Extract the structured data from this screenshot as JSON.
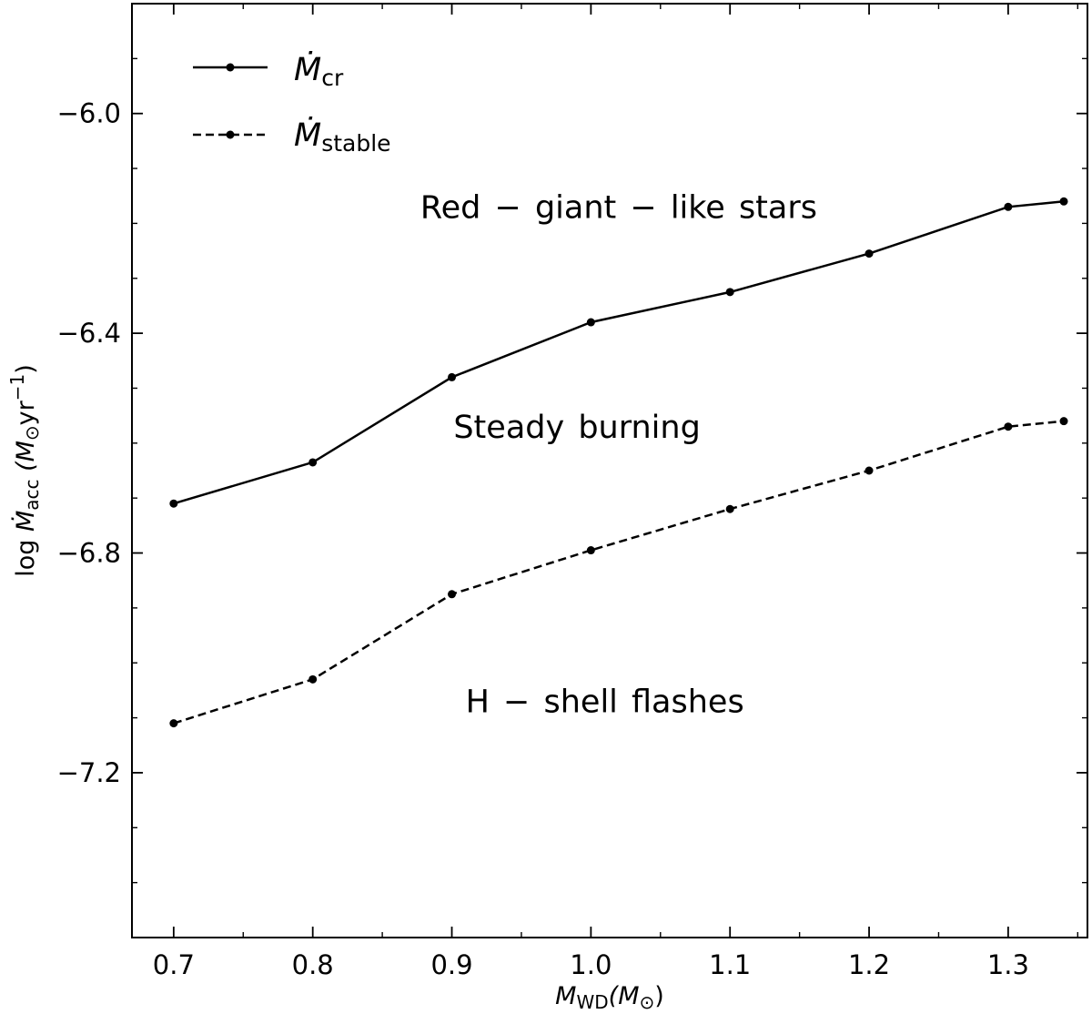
{
  "chart_data": {
    "type": "line",
    "xlabel_main": "M",
    "xlabel_sub": "WD",
    "xlabel_unit": "(M",
    "xlabel_unit_sub": "⊙",
    "xlabel_close": ")",
    "ylabel_prefix": "log ",
    "ylabel_main": "Ṁ",
    "ylabel_sub": "acc",
    "ylabel_unit": " (M",
    "ylabel_unit_sub": "⊙",
    "ylabel_unit_tail": "yr",
    "ylabel_unit_sup": "−1",
    "ylabel_close": ")",
    "xlim": [
      0.67,
      1.357
    ],
    "ylim": [
      -7.5,
      -5.8
    ],
    "x_ticks": [
      0.7,
      0.8,
      0.9,
      1.0,
      1.1,
      1.2,
      1.3
    ],
    "x_tick_labels": [
      "0.7",
      "0.8",
      "0.9",
      "1.0",
      "1.1",
      "1.2",
      "1.3"
    ],
    "y_ticks": [
      -6.0,
      -6.4,
      -6.8,
      -7.2
    ],
    "y_tick_labels": [
      "−6.0",
      "−6.4",
      "−6.8",
      "−7.2"
    ],
    "x": [
      0.7,
      0.8,
      0.9,
      1.0,
      1.1,
      1.2,
      1.3,
      1.34
    ],
    "series": [
      {
        "name_main": "Ṁ",
        "name_sub": "cr",
        "style": "solid",
        "color": "#000000",
        "values": [
          -6.71,
          -6.635,
          -6.48,
          -6.38,
          -6.325,
          -6.255,
          -6.17,
          -6.16
        ]
      },
      {
        "name_main": "Ṁ",
        "name_sub": "stable",
        "style": "dashed",
        "color": "#000000",
        "values": [
          -7.11,
          -7.03,
          -6.875,
          -6.795,
          -6.72,
          -6.65,
          -6.57,
          -6.56
        ]
      }
    ],
    "annotations": [
      {
        "text": "Red − giant − like stars",
        "x": 1.02,
        "y": -6.19
      },
      {
        "text": "Steady burning",
        "x": 0.99,
        "y": -6.59
      },
      {
        "text": "H − shell flashes",
        "x": 1.01,
        "y": -7.09
      }
    ],
    "legend_position": "top-left",
    "grid": false
  }
}
